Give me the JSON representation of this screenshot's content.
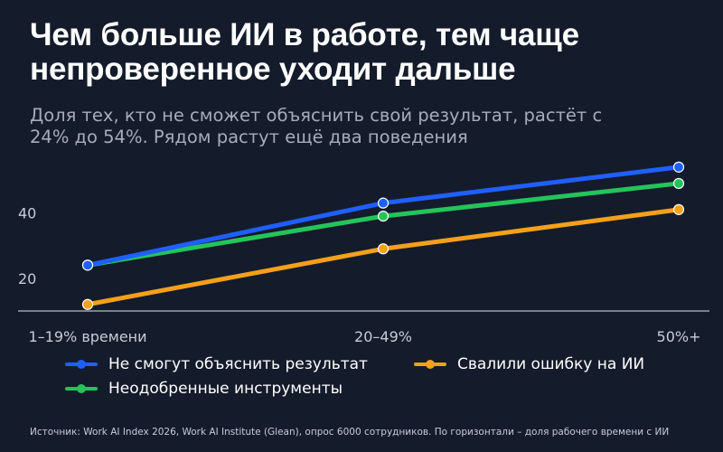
{
  "title_lines": [
    "Чем больше ИИ в работе, тем чаще",
    "непроверенное уходит дальше"
  ],
  "subtitle_lines": [
    "Доля тех, кто не сможет объяснить свой результат, растёт с",
    "24% до 54%. Рядом растут ещё два поведения"
  ],
  "source": "Источник: Work AI Index 2026, Work AI Institute (Glean), опрос 6000 сотрудников. По горизонтали – доля рабочего времени с ИИ",
  "colors": {
    "background": "#141b2b",
    "blue": "#1f5fff",
    "green": "#24c45a",
    "orange": "#f5a01a"
  },
  "chart_data": {
    "type": "line",
    "categories": [
      "1–19% времени",
      "20–49%",
      "50%+"
    ],
    "y_ticks": [
      20,
      40
    ],
    "ylim": [
      10,
      57
    ],
    "grid": false,
    "legend_position": "bottom",
    "series": [
      {
        "name": "Не смогут объяснить результат",
        "color": "#1f5fff",
        "values": [
          24,
          43,
          54
        ]
      },
      {
        "name": "Неодобренные инструменты",
        "color": "#24c45a",
        "values": [
          24,
          39,
          49
        ]
      },
      {
        "name": "Свалили ошибку на ИИ",
        "color": "#f5a01a",
        "values": [
          12,
          29,
          41
        ]
      }
    ]
  }
}
